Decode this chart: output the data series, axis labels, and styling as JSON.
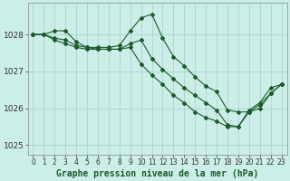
{
  "title": "Graphe pression niveau de la mer (hPa)",
  "bg_color": "#cceee8",
  "grid_color": "#aad4ce",
  "line_color": "#1a5c2a",
  "series": [
    [
      1028.0,
      1028.0,
      1028.1,
      1028.1,
      1027.8,
      1027.65,
      1027.65,
      1027.65,
      1027.7,
      1028.1,
      1028.45,
      1028.55,
      1027.9,
      1027.4,
      1027.15,
      1026.85,
      1026.6,
      1026.45,
      1025.95,
      1025.9,
      1025.9,
      1026.0,
      1026.4,
      1026.65
    ],
    [
      1028.0,
      1028.0,
      1027.9,
      1027.85,
      1027.7,
      1027.65,
      1027.6,
      1027.6,
      1027.6,
      1027.65,
      1027.2,
      1026.9,
      1026.65,
      1026.35,
      1026.15,
      1025.9,
      1025.75,
      1025.65,
      1025.5,
      1025.5,
      1025.9,
      1026.1,
      1026.4,
      1026.65
    ],
    [
      1028.0,
      1028.0,
      1027.85,
      1027.75,
      1027.65,
      1027.6,
      1027.6,
      1027.6,
      1027.6,
      1027.75,
      1027.85,
      1027.35,
      1027.05,
      1026.8,
      1026.55,
      1026.35,
      1026.15,
      1025.95,
      1025.55,
      1025.5,
      1025.95,
      1026.15,
      1026.55,
      1026.65
    ]
  ],
  "xlim": [
    -0.5,
    23.5
  ],
  "ylim": [
    1024.75,
    1028.85
  ],
  "yticks": [
    1025,
    1026,
    1027,
    1028
  ],
  "xticks": [
    0,
    1,
    2,
    3,
    4,
    5,
    6,
    7,
    8,
    9,
    10,
    11,
    12,
    13,
    14,
    15,
    16,
    17,
    18,
    19,
    20,
    21,
    22,
    23
  ],
  "xtick_labels": [
    "0",
    "1",
    "2",
    "3",
    "4",
    "5",
    "6",
    "7",
    "8",
    "9",
    "10",
    "11",
    "12",
    "13",
    "14",
    "15",
    "16",
    "17",
    "18",
    "19",
    "20",
    "21",
    "22",
    "23"
  ],
  "marker": "D",
  "marker_size": 2.0,
  "linewidth": 0.8,
  "tick_fontsize": 5.5,
  "ytick_fontsize": 6.5,
  "title_fontsize": 7.0
}
